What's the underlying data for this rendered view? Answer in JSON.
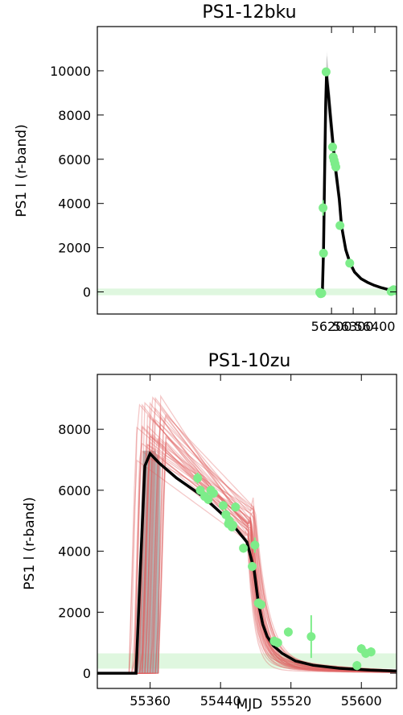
{
  "chart_data": [
    {
      "type": "line",
      "title": "PS1-12bku",
      "ylabel": "PS1 l (r-band)",
      "xlabel": "",
      "xlim": [
        55120,
        56500
      ],
      "ylim": [
        -1000,
        12000
      ],
      "xticks": [
        56200,
        56300,
        56400
      ],
      "yticks": [
        0,
        2000,
        4000,
        6000,
        8000,
        10000
      ],
      "band": {
        "y0": -150,
        "y1": 150,
        "color": "#dff7df"
      },
      "colors": {
        "model": "#000000",
        "sample": "#bfbfbf",
        "obs": "#7ded8a"
      },
      "model_line": {
        "x": [
          56130,
          56150,
          56158,
          56163,
          56168,
          56173,
          56177,
          56186,
          56196,
          56206,
          56216,
          56226,
          56236,
          56246,
          56266,
          56286,
          56306,
          56336,
          56366,
          56396,
          56426,
          56456,
          56486,
          56495
        ],
        "y": [
          0,
          0,
          0,
          1900,
          5200,
          8500,
          9800,
          8900,
          7800,
          6800,
          5800,
          5000,
          4200,
          3000,
          1900,
          1300,
          900,
          600,
          430,
          300,
          200,
          120,
          60,
          40
        ]
      },
      "points": {
        "x": [
          56146,
          56150,
          56155,
          56161,
          56163,
          56175,
          56205,
          56208,
          56212,
          56216,
          56220,
          56239,
          56284,
          56475,
          56481,
          56487,
          56494
        ],
        "y": [
          -20,
          -80,
          -60,
          3800,
          1750,
          9950,
          6550,
          6100,
          5950,
          5800,
          5650,
          3000,
          1300,
          20,
          60,
          100,
          60
        ],
        "yerr": [
          80,
          80,
          80,
          350,
          120,
          200,
          150,
          150,
          150,
          150,
          150,
          150,
          120,
          80,
          80,
          80,
          80
        ]
      }
    },
    {
      "type": "line",
      "title": "PS1-10zu",
      "ylabel": "PS1 l (r-band)",
      "xlabel": "MJD",
      "xlim": [
        55300,
        55640
      ],
      "ylim": [
        -500,
        9800
      ],
      "xticks": [
        55360,
        55440,
        55520,
        55600
      ],
      "yticks": [
        0,
        2000,
        4000,
        6000,
        8000
      ],
      "band": {
        "y0": 150,
        "y1": 650,
        "color": "#dff7df"
      },
      "colors": {
        "model": "#000000",
        "sample": "#e06060",
        "shade": "#9a9a9a",
        "obs": "#7ded8a"
      },
      "model_line": {
        "x": [
          55300,
          55340,
          55344,
          55349,
          55354,
          55360,
          55370,
          55390,
          55420,
          55450,
          55470,
          55478,
          55483,
          55488,
          55493,
          55500,
          55510,
          55525,
          55545,
          55575,
          55610,
          55640
        ],
        "y": [
          0,
          0,
          0,
          3500,
          6800,
          7200,
          6900,
          6400,
          5800,
          5000,
          4300,
          3400,
          2300,
          1600,
          1200,
          900,
          650,
          400,
          260,
          160,
          100,
          70
        ]
      },
      "points": {
        "x": [
          55414,
          55417,
          55422,
          55426,
          55429,
          55432,
          55443,
          55446,
          55449,
          55450,
          55453,
          55454,
          55457,
          55466,
          55476,
          55479,
          55483,
          55486,
          55501,
          55505,
          55517,
          55543,
          55595,
          55600,
          55605,
          55611
        ],
        "y": [
          6400,
          6000,
          5800,
          5700,
          6000,
          5900,
          5500,
          5200,
          4900,
          5000,
          4800,
          4850,
          5450,
          4100,
          3500,
          4200,
          2300,
          2250,
          1050,
          1000,
          1350,
          1200,
          250,
          800,
          650,
          700
        ],
        "yerr": [
          180,
          150,
          150,
          150,
          150,
          150,
          150,
          150,
          150,
          150,
          150,
          150,
          150,
          150,
          150,
          250,
          150,
          150,
          150,
          150,
          150,
          700,
          150,
          150,
          150,
          150
        ]
      }
    }
  ]
}
